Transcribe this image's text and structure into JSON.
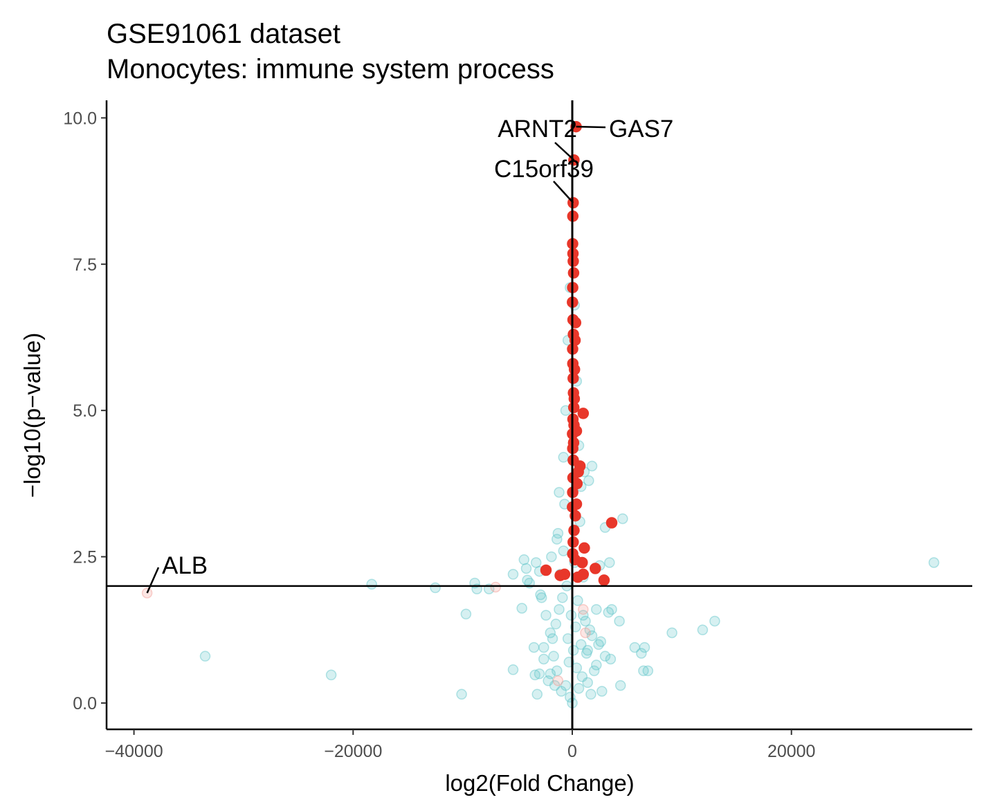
{
  "chart_data": {
    "type": "scatter",
    "title": "GSE91061 dataset",
    "subtitle": "Monocytes: immune system process",
    "xlabel": "log2(Fold Change)",
    "ylabel": "−log10(p−value)",
    "xlim": [
      -42500,
      36500
    ],
    "ylim": [
      -0.45,
      10.3
    ],
    "x_ticks": [
      -40000,
      -20000,
      0,
      20000
    ],
    "x_tick_labels": [
      "−40000",
      "−20000",
      "0",
      "20000"
    ],
    "y_ticks": [
      0.0,
      2.5,
      5.0,
      7.5,
      10.0
    ],
    "y_tick_labels": [
      "0.0",
      "2.5",
      "5.0",
      "7.5",
      "10.0"
    ],
    "grid": false,
    "legend": "none",
    "reference_lines": {
      "vertical_x": 0,
      "horizontal_y": 2
    },
    "colors": {
      "significant": "#e8372a",
      "not_significant": "#5bc4c7",
      "faded_significant": "#f29a93"
    },
    "series": [
      {
        "style": "not_significant",
        "x": [
          -33500,
          -22000,
          -18300,
          -12500,
          -9700,
          -10100,
          -5400,
          -5400,
          -4600,
          -4400,
          -4200,
          -4100,
          -3900,
          -3500,
          -3400,
          -3200,
          -3000,
          -2900,
          -2600,
          -2400,
          -2200,
          -2000,
          -1900,
          -1700,
          -1500,
          -1400,
          -1300,
          -1200,
          -1100,
          -1000,
          -900,
          -800,
          -700,
          -600,
          -500,
          -400,
          -300,
          -200,
          -100,
          0,
          100,
          200,
          300,
          400,
          500,
          600,
          700,
          800,
          900,
          1000,
          1100,
          1200,
          1300,
          1400,
          1500,
          1600,
          1700,
          1800,
          2000,
          2200,
          2400,
          2500,
          2700,
          3000,
          3300,
          3400,
          3500,
          4300,
          4600,
          5700,
          6300,
          6500,
          6600,
          6900,
          9100,
          11900,
          13000,
          33000,
          -7600,
          -8700,
          -8900,
          -3300,
          -3000,
          -2800,
          -2600,
          -2000,
          -1800,
          -1600,
          -1400,
          -1200,
          -800,
          -600,
          -400,
          -200,
          200,
          400,
          600,
          800,
          1000,
          1400,
          1800,
          2200,
          2600,
          3000,
          3600,
          4400
        ],
        "y": [
          0.8,
          0.48,
          2.03,
          1.97,
          1.52,
          0.15,
          2.2,
          0.57,
          1.62,
          2.45,
          2.3,
          2.1,
          2.05,
          0.95,
          0.48,
          0.15,
          0.5,
          1.85,
          0.95,
          1.5,
          0.38,
          1.2,
          2.5,
          0.8,
          1.35,
          0.55,
          2.9,
          1.6,
          2.2,
          0.2,
          1.8,
          2.6,
          3.4,
          0.3,
          2.0,
          1.1,
          0.7,
          0.1,
          1.5,
          0.0,
          0.9,
          2.4,
          1.3,
          0.6,
          1.75,
          0.25,
          3.1,
          1.0,
          0.45,
          2.15,
          3.95,
          1.4,
          0.85,
          0.35,
          3.8,
          1.25,
          0.15,
          4.05,
          0.55,
          1.6,
          1.0,
          2.35,
          0.2,
          3.0,
          1.55,
          2.4,
          0.75,
          1.4,
          3.15,
          0.95,
          0.85,
          0.55,
          0.95,
          0.55,
          1.2,
          1.25,
          1.4,
          2.4,
          1.95,
          1.95,
          2.05,
          2.4,
          2.25,
          1.8,
          0.75,
          0.5,
          1.1,
          0.3,
          2.8,
          3.6,
          4.2,
          5.0,
          6.2,
          7.1,
          6.8,
          5.5,
          4.4,
          3.7,
          1.5,
          0.9,
          1.15,
          0.65,
          1.05,
          0.8,
          1.6,
          0.3
        ]
      },
      {
        "style": "significant",
        "x": [
          350,
          150,
          80,
          50,
          30,
          60,
          90,
          120,
          40,
          20,
          70,
          100,
          30,
          50,
          80,
          110,
          140,
          60,
          25,
          45,
          300,
          250,
          200,
          180,
          160,
          120,
          90,
          60,
          40,
          20,
          550,
          430,
          380,
          700,
          1000,
          380,
          280,
          160,
          80,
          40,
          250,
          1100,
          500,
          3600,
          -2400,
          -1100,
          -700,
          900,
          1000,
          2100,
          2900
        ],
        "y": [
          9.85,
          9.28,
          8.55,
          8.32,
          7.85,
          7.68,
          7.55,
          7.35,
          7.1,
          6.85,
          6.55,
          6.3,
          6.05,
          5.8,
          5.55,
          5.3,
          5.05,
          4.85,
          4.6,
          4.35,
          6.5,
          6.2,
          5.7,
          5.2,
          4.75,
          4.45,
          4.15,
          3.85,
          3.6,
          3.35,
          3.95,
          3.75,
          3.4,
          4.05,
          4.95,
          4.65,
          3.2,
          2.95,
          2.75,
          2.55,
          2.45,
          2.65,
          2.15,
          3.08,
          2.27,
          2.18,
          2.2,
          2.4,
          2.2,
          2.3,
          2.1
        ]
      },
      {
        "style": "faded_significant",
        "x": [
          -38800,
          -7000,
          -1300,
          1000,
          1200
        ],
        "y": [
          1.88,
          1.98,
          0.38,
          1.6,
          1.2
        ]
      }
    ],
    "annotations": [
      {
        "text": "GAS7",
        "x": 350,
        "y": 9.85
      },
      {
        "text": "ARNT2",
        "x": 150,
        "y": 9.28
      },
      {
        "text": "C15orf39",
        "x": 80,
        "y": 8.55
      },
      {
        "text": "ALB",
        "x": -38800,
        "y": 1.88
      }
    ]
  }
}
